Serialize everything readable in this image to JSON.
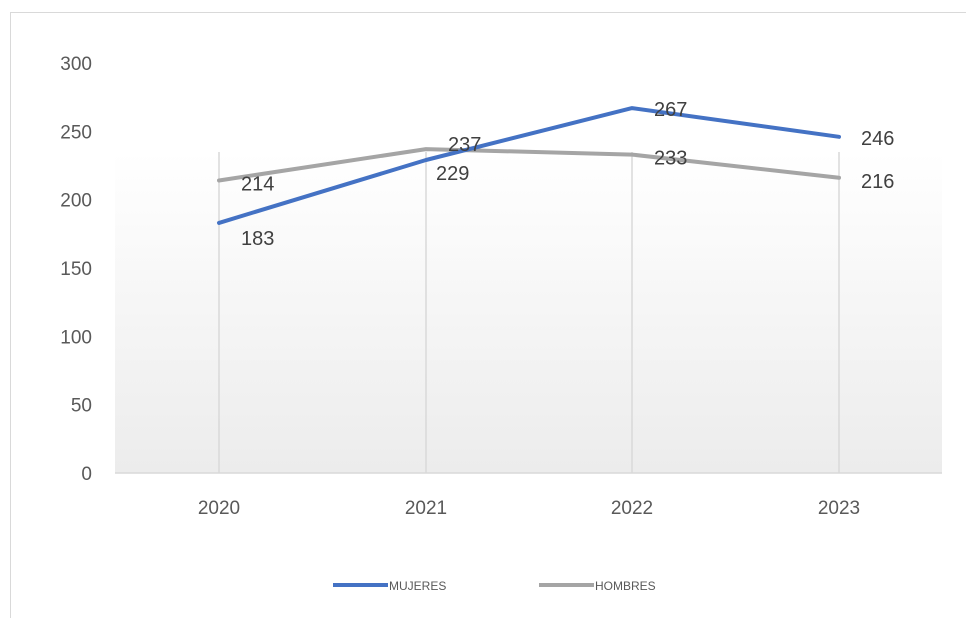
{
  "chart_data": {
    "type": "line",
    "categories": [
      "2020",
      "2021",
      "2022",
      "2023"
    ],
    "series": [
      {
        "name": "MUJERES",
        "values": [
          183,
          229,
          267,
          246
        ],
        "color": "#4472c4"
      },
      {
        "name": "HOMBRES",
        "values": [
          214,
          237,
          233,
          216
        ],
        "color": "#a5a5a5"
      }
    ],
    "y_ticks": [
      "0",
      "50",
      "100",
      "150",
      "200",
      "250",
      "300"
    ],
    "ylim": [
      0,
      300
    ],
    "grid": "vertical",
    "legend_position": "bottom"
  }
}
